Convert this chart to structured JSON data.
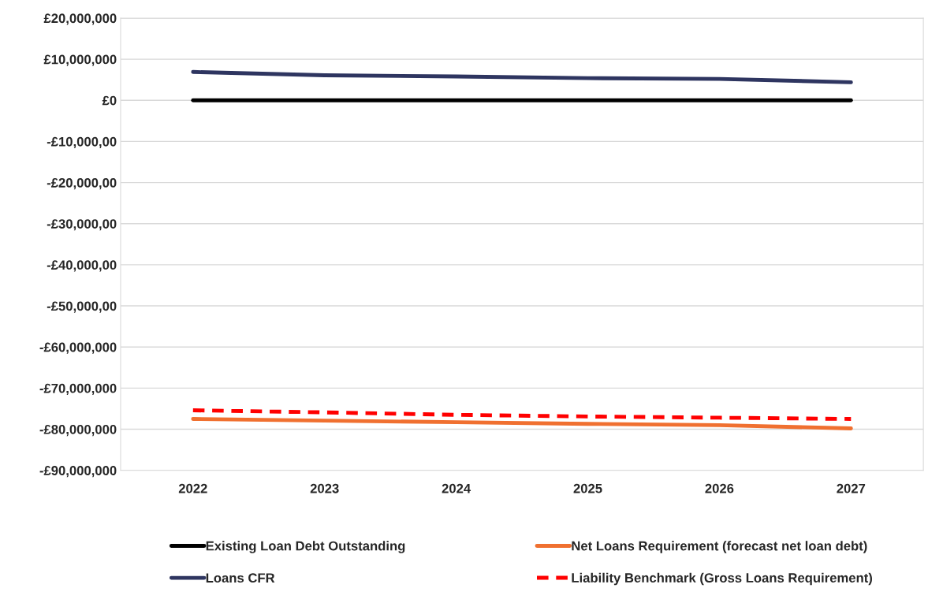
{
  "chart_data": {
    "type": "line",
    "categories": [
      "2022",
      "2023",
      "2024",
      "2025",
      "2026",
      "2027"
    ],
    "series": [
      {
        "name": "Existing Loan Debt Outstanding",
        "color": "#000000",
        "values": [
          0,
          0,
          0,
          0,
          0,
          0
        ]
      },
      {
        "name": "Loans CFR",
        "color": "#2e3560",
        "values": [
          6900000,
          6100000,
          5800000,
          5400000,
          5200000,
          4400000
        ]
      },
      {
        "name": "Net Loans Requirement (forecast net loan debt)",
        "color": "#f07030",
        "values": [
          -77500000,
          -77900000,
          -78300000,
          -78700000,
          -79000000,
          -79800000
        ]
      },
      {
        "name": "Liability Benchmark (Gross Loans Requirement)",
        "color": "#ff0000",
        "line_style": "dashed",
        "values": [
          -75400000,
          -75900000,
          -76500000,
          -76900000,
          -77200000,
          -77500000
        ]
      }
    ],
    "ylim": [
      -90000000,
      20000000
    ],
    "yticks": [
      {
        "value": -90000000,
        "label": "-£90,000,000"
      },
      {
        "value": -80000000,
        "label": "-£80,000,000"
      },
      {
        "value": -70000000,
        "label": "-£70,000,000"
      },
      {
        "value": -60000000,
        "label": "-£60,000,000"
      },
      {
        "value": -50000000,
        "label": "-£50,000,00"
      },
      {
        "value": -40000000,
        "label": "-£40,000,00"
      },
      {
        "value": -30000000,
        "label": "-£30,000,00"
      },
      {
        "value": -20000000,
        "label": "-£20,000,00"
      },
      {
        "value": -10000000,
        "label": "-£10,000,00"
      },
      {
        "value": 0,
        "label": "£0"
      },
      {
        "value": 10000000,
        "label": "£10,000,000"
      },
      {
        "value": 20000000,
        "label": "£20,000,000"
      }
    ],
    "grid": "y",
    "legend": "bottom"
  }
}
